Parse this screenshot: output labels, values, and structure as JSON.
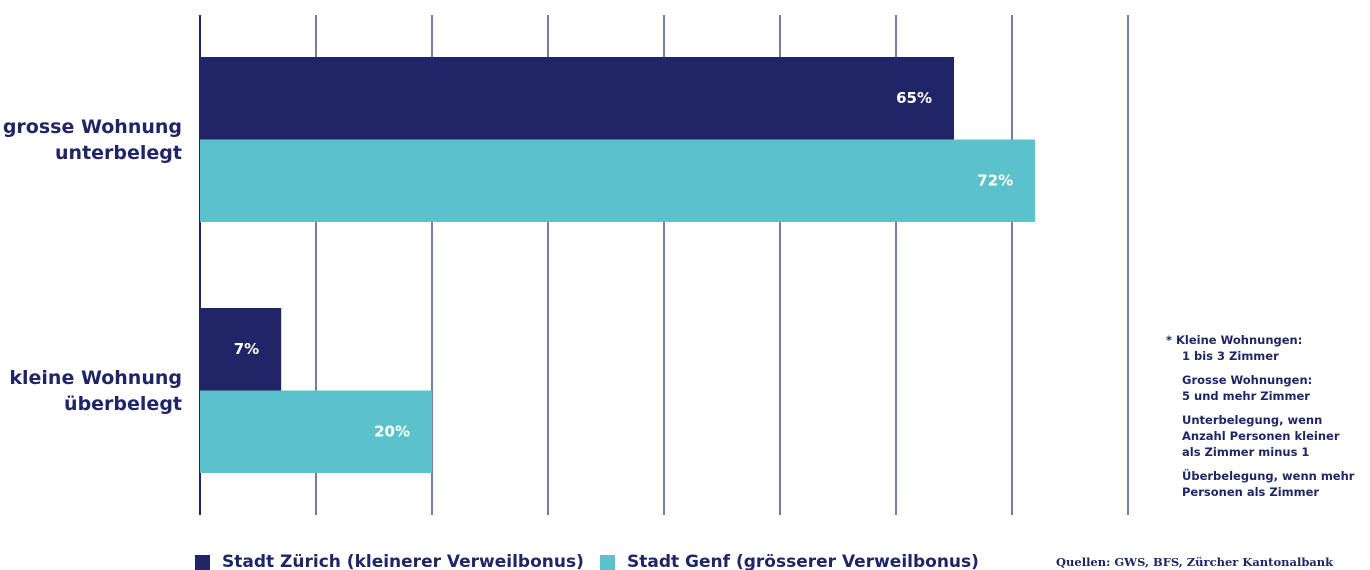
{
  "chart_data": {
    "type": "barh",
    "categories": [
      "grosse Wohnung\nunterbelegt",
      "kleine Wohnung\nüberbelegt"
    ],
    "series": [
      {
        "name": "Stadt Zürich (kleinerer Verweilbonus)",
        "color": "#1f2566",
        "values": [
          65,
          7
        ],
        "value_labels": [
          "65%",
          "7%"
        ]
      },
      {
        "name": "Stadt Genf (grösserer Verweilbonus)",
        "color": "#5bc2cc",
        "values": [
          72,
          20
        ],
        "value_labels": [
          "72%",
          "20%"
        ]
      }
    ],
    "xlim": [
      0,
      80
    ],
    "xticks": [
      0,
      10,
      20,
      30,
      40,
      50,
      60,
      70,
      80
    ],
    "grid": true,
    "notes": [
      "* Kleine Wohnungen:\n1 bis 3 Zimmer",
      "Grosse Wohnungen:\n5 und mehr Zimmer",
      "Unterbelegung, wenn\nAnzahl Personen kleiner\nals Zimmer minus 1",
      "Überbelegung, wenn mehr\nPersonen als Zimmer"
    ],
    "source": "Quellen: GWS, BFS, Zürcher Kantonalbank"
  }
}
